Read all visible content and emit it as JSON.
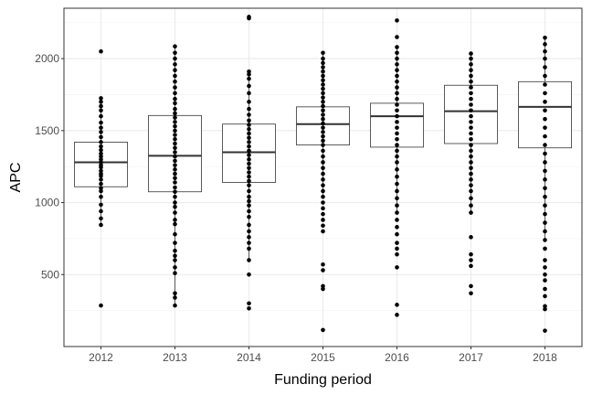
{
  "chart_data": {
    "type": "boxplot",
    "title": "",
    "xlabel": "Funding period",
    "ylabel": "APC",
    "ylim": [
      0,
      2350
    ],
    "yticks": [
      500,
      1000,
      1500,
      2000
    ],
    "grid": true,
    "categories": [
      "2012",
      "2013",
      "2014",
      "2015",
      "2016",
      "2017",
      "2018"
    ],
    "boxes": [
      {
        "year": "2012",
        "q1": 1110,
        "median": 1280,
        "q3": 1420
      },
      {
        "year": "2013",
        "q1": 1075,
        "median": 1325,
        "q3": 1605
      },
      {
        "year": "2014",
        "q1": 1140,
        "median": 1350,
        "q3": 1545
      },
      {
        "year": "2015",
        "q1": 1400,
        "median": 1545,
        "q3": 1665
      },
      {
        "year": "2016",
        "q1": 1385,
        "median": 1600,
        "q3": 1690
      },
      {
        "year": "2017",
        "q1": 1410,
        "median": 1635,
        "q3": 1815
      },
      {
        "year": "2018",
        "q1": 1380,
        "median": 1665,
        "q3": 1840
      }
    ],
    "points": {
      "2012": [
        285,
        845,
        890,
        940,
        985,
        1040,
        1080,
        1100,
        1130,
        1160,
        1185,
        1200,
        1220,
        1245,
        1260,
        1280,
        1300,
        1320,
        1340,
        1365,
        1390,
        1420,
        1455,
        1490,
        1520,
        1555,
        1600,
        1640,
        1670,
        1700,
        1725,
        2050
      ],
      "2013": [
        285,
        340,
        370,
        510,
        550,
        600,
        630,
        665,
        720,
        780,
        850,
        880,
        930,
        970,
        1000,
        1040,
        1075,
        1105,
        1140,
        1170,
        1200,
        1230,
        1260,
        1290,
        1320,
        1350,
        1380,
        1410,
        1440,
        1470,
        1500,
        1530,
        1560,
        1590,
        1620,
        1650,
        1690,
        1720,
        1760,
        1800,
        1840,
        1880,
        1920,
        1960,
        2000,
        2040,
        2085
      ],
      "2014": [
        265,
        300,
        500,
        600,
        680,
        720,
        760,
        800,
        845,
        900,
        940,
        980,
        1010,
        1040,
        1080,
        1120,
        1150,
        1180,
        1210,
        1240,
        1270,
        1300,
        1330,
        1360,
        1390,
        1420,
        1450,
        1480,
        1510,
        1540,
        1570,
        1610,
        1650,
        1700,
        1760,
        1810,
        1860,
        1890,
        1910,
        2280,
        2290
      ],
      "2015": [
        115,
        400,
        420,
        530,
        570,
        800,
        840,
        880,
        920,
        960,
        1000,
        1040,
        1080,
        1120,
        1160,
        1200,
        1240,
        1280,
        1320,
        1360,
        1400,
        1430,
        1460,
        1490,
        1520,
        1550,
        1580,
        1610,
        1640,
        1670,
        1700,
        1730,
        1760,
        1790,
        1820,
        1850,
        1880,
        1910,
        1940,
        1970,
        2000,
        2040
      ],
      "2016": [
        220,
        290,
        550,
        640,
        680,
        720,
        780,
        830,
        880,
        930,
        980,
        1030,
        1080,
        1130,
        1180,
        1230,
        1280,
        1320,
        1360,
        1400,
        1440,
        1480,
        1520,
        1560,
        1600,
        1640,
        1680,
        1720,
        1760,
        1800,
        1840,
        1880,
        1920,
        1960,
        2000,
        2040,
        2080,
        2150,
        2265
      ],
      "2017": [
        370,
        420,
        560,
        600,
        640,
        760,
        930,
        980,
        1030,
        1080,
        1120,
        1160,
        1200,
        1240,
        1280,
        1320,
        1360,
        1400,
        1440,
        1480,
        1520,
        1560,
        1600,
        1640,
        1680,
        1720,
        1760,
        1800,
        1840,
        1880,
        1920,
        1960,
        2000,
        2035
      ],
      "2018": [
        110,
        260,
        280,
        350,
        400,
        460,
        500,
        550,
        600,
        680,
        740,
        800,
        860,
        920,
        980,
        1040,
        1100,
        1160,
        1220,
        1280,
        1340,
        1400,
        1460,
        1520,
        1580,
        1640,
        1700,
        1760,
        1820,
        1880,
        1940,
        2000,
        2050,
        2100,
        2145
      ]
    }
  }
}
